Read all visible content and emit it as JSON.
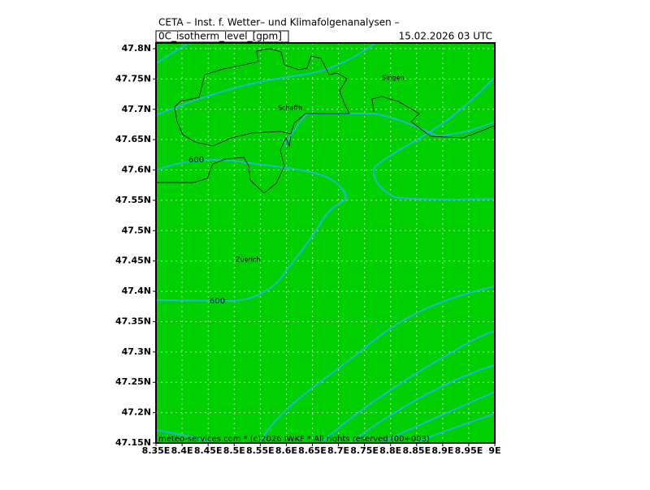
{
  "header": {
    "title": "CETA – Inst. f. Wetter– und Klimafolgenanalysen –",
    "field": "0C_isotherm_level_[gpm]",
    "valid_time": "15.02.2026  03 UTC"
  },
  "map": {
    "lon_ticks": [
      {
        "value": 8.35,
        "label": "8.35E"
      },
      {
        "value": 8.4,
        "label": "8.4E"
      },
      {
        "value": 8.45,
        "label": "8.45E"
      },
      {
        "value": 8.5,
        "label": "8.5E"
      },
      {
        "value": 8.55,
        "label": "8.55E"
      },
      {
        "value": 8.6,
        "label": "8.6E"
      },
      {
        "value": 8.65,
        "label": "8.65E"
      },
      {
        "value": 8.7,
        "label": "8.7E"
      },
      {
        "value": 8.75,
        "label": "8.75E"
      },
      {
        "value": 8.8,
        "label": "8.8E"
      },
      {
        "value": 8.85,
        "label": "8.85E"
      },
      {
        "value": 8.9,
        "label": "8.9E"
      },
      {
        "value": 8.95,
        "label": "8.95E"
      },
      {
        "value": 9.0,
        "label": "9E"
      }
    ],
    "lat_ticks": [
      {
        "value": 47.15,
        "label": "47.15N"
      },
      {
        "value": 47.2,
        "label": "47.2N"
      },
      {
        "value": 47.25,
        "label": "47.25N"
      },
      {
        "value": 47.3,
        "label": "47.3N"
      },
      {
        "value": 47.35,
        "label": "47.35N"
      },
      {
        "value": 47.4,
        "label": "47.4N"
      },
      {
        "value": 47.45,
        "label": "47.45N"
      },
      {
        "value": 47.5,
        "label": "47.5N"
      },
      {
        "value": 47.55,
        "label": "47.55N"
      },
      {
        "value": 47.6,
        "label": "47.6N"
      },
      {
        "value": 47.65,
        "label": "47.65N"
      },
      {
        "value": 47.7,
        "label": "47.7N"
      },
      {
        "value": 47.75,
        "label": "47.75N"
      },
      {
        "value": 47.8,
        "label": "47.8N"
      }
    ],
    "places": [
      "Singen",
      "Schaffh.",
      "Zuerich"
    ],
    "contour_labels": [
      "600",
      "600"
    ]
  },
  "footer": "meteo-services.com * (c)2026 IWKF * All rights reserved (00+003)"
}
